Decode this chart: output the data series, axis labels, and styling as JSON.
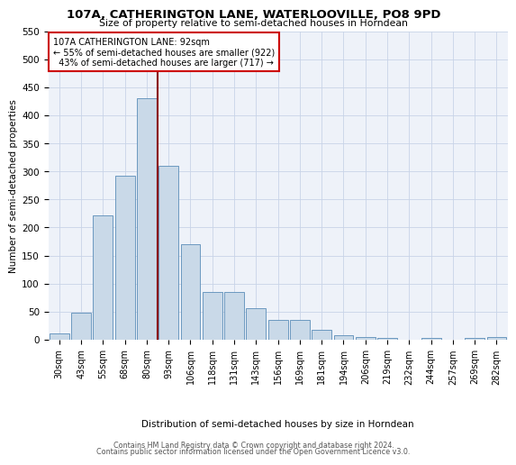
{
  "title": "107A, CATHERINGTON LANE, WATERLOOVILLE, PO8 9PD",
  "subtitle": "Size of property relative to semi-detached houses in Horndean",
  "xlabel": "Distribution of semi-detached houses by size in Horndean",
  "ylabel": "Number of semi-detached properties",
  "bar_labels": [
    "30sqm",
    "43sqm",
    "55sqm",
    "68sqm",
    "80sqm",
    "93sqm",
    "106sqm",
    "118sqm",
    "131sqm",
    "143sqm",
    "156sqm",
    "169sqm",
    "181sqm",
    "194sqm",
    "206sqm",
    "219sqm",
    "232sqm",
    "244sqm",
    "257sqm",
    "269sqm",
    "282sqm"
  ],
  "bar_values": [
    12,
    48,
    222,
    292,
    430,
    310,
    170,
    85,
    85,
    57,
    35,
    35,
    18,
    8,
    5,
    4,
    0,
    3,
    0,
    3,
    5
  ],
  "bar_color": "#c9d9e8",
  "bar_edge_color": "#5b8db8",
  "property_label": "107A CATHERINGTON LANE: 92sqm",
  "pct_smaller": 55,
  "count_smaller": 922,
  "pct_larger": 43,
  "count_larger": 717,
  "vline_color": "#8b0000",
  "annotation_box_color": "#ffffff",
  "annotation_box_edge": "#cc0000",
  "ylim": [
    0,
    550
  ],
  "yticks": [
    0,
    50,
    100,
    150,
    200,
    250,
    300,
    350,
    400,
    450,
    500,
    550
  ],
  "footer_line1": "Contains HM Land Registry data © Crown copyright and database right 2024.",
  "footer_line2": "Contains public sector information licensed under the Open Government Licence v3.0.",
  "bg_color": "#eef2f9",
  "grid_color": "#c8d4e8"
}
